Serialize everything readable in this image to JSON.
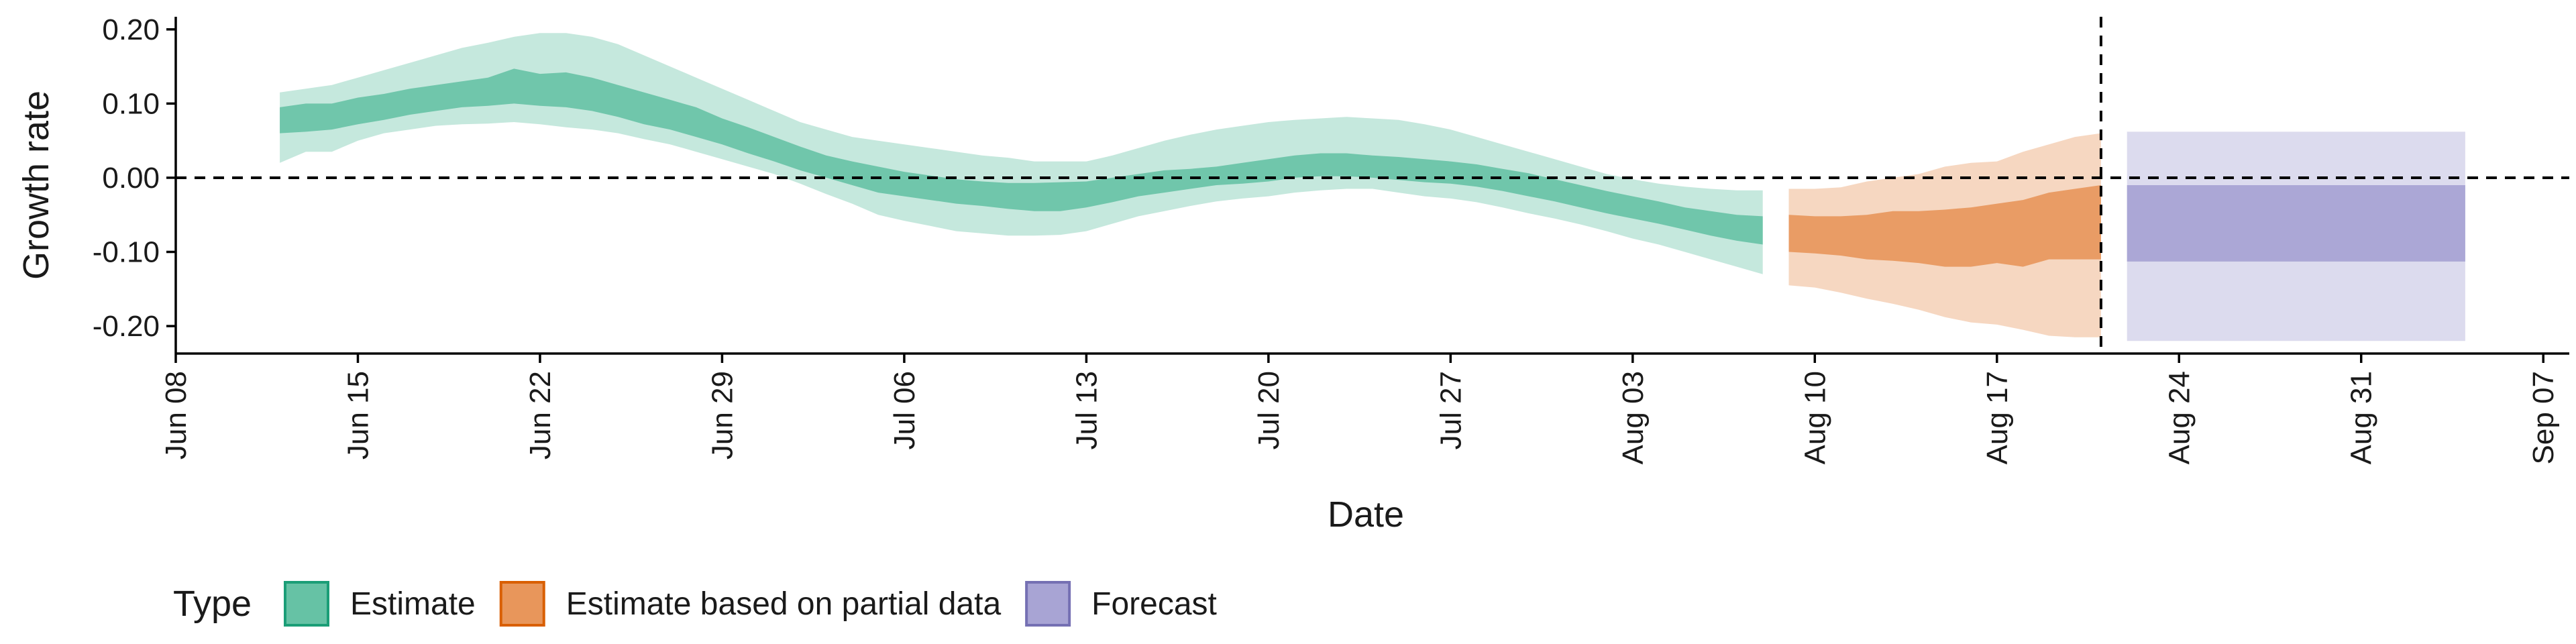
{
  "chart_data": {
    "type": "area",
    "xlabel": "Date",
    "ylabel": "Growth rate",
    "x_ticks": [
      {
        "date": "2020-06-08",
        "label": "Jun 08"
      },
      {
        "date": "2020-06-15",
        "label": "Jun 15"
      },
      {
        "date": "2020-06-22",
        "label": "Jun 22"
      },
      {
        "date": "2020-06-29",
        "label": "Jun 29"
      },
      {
        "date": "2020-07-06",
        "label": "Jul 06"
      },
      {
        "date": "2020-07-13",
        "label": "Jul 13"
      },
      {
        "date": "2020-07-20",
        "label": "Jul 20"
      },
      {
        "date": "2020-07-27",
        "label": "Jul 27"
      },
      {
        "date": "2020-08-03",
        "label": "Aug 03"
      },
      {
        "date": "2020-08-10",
        "label": "Aug 10"
      },
      {
        "date": "2020-08-17",
        "label": "Aug 17"
      },
      {
        "date": "2020-08-24",
        "label": "Aug 24"
      },
      {
        "date": "2020-08-31",
        "label": "Aug 31"
      },
      {
        "date": "2020-09-07",
        "label": "Sep 07"
      }
    ],
    "y_ticks": [
      {
        "value": 0.2,
        "label": "0.20"
      },
      {
        "value": 0.1,
        "label": "0.10"
      },
      {
        "value": 0.0,
        "label": "0.00"
      },
      {
        "value": -0.1,
        "label": "-0.10"
      },
      {
        "value": -0.2,
        "label": "-0.20"
      }
    ],
    "xlim": [
      "2020-06-08",
      "2020-09-08"
    ],
    "ylim": [
      -0.237,
      0.217
    ],
    "reference_lines": {
      "horizontal_y": 0.0,
      "vertical_date": "2020-08-21",
      "style": "dashed"
    },
    "grid": false,
    "legend": {
      "title": "Type",
      "position": "bottom-left",
      "items": [
        {
          "label": "Estimate",
          "fill": "#66c2a5",
          "border": "#1b9e77"
        },
        {
          "label": "Estimate based on partial data",
          "fill": "#e8965b",
          "border": "#d95f02"
        },
        {
          "label": "Forecast",
          "fill": "#a8a4d4",
          "border": "#7570b3"
        }
      ]
    },
    "series": [
      {
        "name": "Estimate",
        "color": "#66c2a5",
        "light_opacity": 0.38,
        "dark_opacity": 0.9,
        "points": [
          {
            "date": "2020-06-12",
            "lo90": 0.02,
            "lo50": 0.06,
            "hi50": 0.095,
            "hi90": 0.115
          },
          {
            "date": "2020-06-13",
            "lo90": 0.035,
            "lo50": 0.062,
            "hi50": 0.1,
            "hi90": 0.12
          },
          {
            "date": "2020-06-14",
            "lo90": 0.035,
            "lo50": 0.065,
            "hi50": 0.1,
            "hi90": 0.125
          },
          {
            "date": "2020-06-15",
            "lo90": 0.05,
            "lo50": 0.072,
            "hi50": 0.108,
            "hi90": 0.135
          },
          {
            "date": "2020-06-16",
            "lo90": 0.06,
            "lo50": 0.078,
            "hi50": 0.113,
            "hi90": 0.145
          },
          {
            "date": "2020-06-17",
            "lo90": 0.065,
            "lo50": 0.085,
            "hi50": 0.12,
            "hi90": 0.155
          },
          {
            "date": "2020-06-18",
            "lo90": 0.07,
            "lo50": 0.09,
            "hi50": 0.125,
            "hi90": 0.165
          },
          {
            "date": "2020-06-19",
            "lo90": 0.072,
            "lo50": 0.095,
            "hi50": 0.13,
            "hi90": 0.175
          },
          {
            "date": "2020-06-20",
            "lo90": 0.073,
            "lo50": 0.097,
            "hi50": 0.135,
            "hi90": 0.182
          },
          {
            "date": "2020-06-21",
            "lo90": 0.075,
            "lo50": 0.1,
            "hi50": 0.147,
            "hi90": 0.19
          },
          {
            "date": "2020-06-22",
            "lo90": 0.072,
            "lo50": 0.097,
            "hi50": 0.14,
            "hi90": 0.195
          },
          {
            "date": "2020-06-23",
            "lo90": 0.068,
            "lo50": 0.095,
            "hi50": 0.142,
            "hi90": 0.195
          },
          {
            "date": "2020-06-24",
            "lo90": 0.065,
            "lo50": 0.09,
            "hi50": 0.135,
            "hi90": 0.19
          },
          {
            "date": "2020-06-25",
            "lo90": 0.06,
            "lo50": 0.082,
            "hi50": 0.125,
            "hi90": 0.18
          },
          {
            "date": "2020-06-26",
            "lo90": 0.052,
            "lo50": 0.072,
            "hi50": 0.115,
            "hi90": 0.165
          },
          {
            "date": "2020-06-27",
            "lo90": 0.045,
            "lo50": 0.065,
            "hi50": 0.105,
            "hi90": 0.15
          },
          {
            "date": "2020-06-28",
            "lo90": 0.035,
            "lo50": 0.055,
            "hi50": 0.095,
            "hi90": 0.135
          },
          {
            "date": "2020-06-29",
            "lo90": 0.025,
            "lo50": 0.045,
            "hi50": 0.08,
            "hi90": 0.12
          },
          {
            "date": "2020-06-30",
            "lo90": 0.015,
            "lo50": 0.033,
            "hi50": 0.068,
            "hi90": 0.105
          },
          {
            "date": "2020-07-01",
            "lo90": 0.005,
            "lo50": 0.022,
            "hi50": 0.055,
            "hi90": 0.09
          },
          {
            "date": "2020-07-02",
            "lo90": -0.008,
            "lo50": 0.01,
            "hi50": 0.042,
            "hi90": 0.075
          },
          {
            "date": "2020-07-03",
            "lo90": -0.022,
            "lo50": 0.0,
            "hi50": 0.03,
            "hi90": 0.065
          },
          {
            "date": "2020-07-04",
            "lo90": -0.035,
            "lo50": -0.01,
            "hi50": 0.022,
            "hi90": 0.055
          },
          {
            "date": "2020-07-05",
            "lo90": -0.05,
            "lo50": -0.02,
            "hi50": 0.015,
            "hi90": 0.05
          },
          {
            "date": "2020-07-06",
            "lo90": -0.058,
            "lo50": -0.025,
            "hi50": 0.008,
            "hi90": 0.045
          },
          {
            "date": "2020-07-07",
            "lo90": -0.065,
            "lo50": -0.03,
            "hi50": 0.003,
            "hi90": 0.04
          },
          {
            "date": "2020-07-08",
            "lo90": -0.072,
            "lo50": -0.035,
            "hi50": -0.002,
            "hi90": 0.035
          },
          {
            "date": "2020-07-09",
            "lo90": -0.075,
            "lo50": -0.038,
            "hi50": -0.005,
            "hi90": 0.03
          },
          {
            "date": "2020-07-10",
            "lo90": -0.078,
            "lo50": -0.042,
            "hi50": -0.007,
            "hi90": 0.027
          },
          {
            "date": "2020-07-11",
            "lo90": -0.078,
            "lo50": -0.045,
            "hi50": -0.007,
            "hi90": 0.022
          },
          {
            "date": "2020-07-12",
            "lo90": -0.077,
            "lo50": -0.045,
            "hi50": -0.006,
            "hi90": 0.022
          },
          {
            "date": "2020-07-13",
            "lo90": -0.072,
            "lo50": -0.04,
            "hi50": -0.005,
            "hi90": 0.022
          },
          {
            "date": "2020-07-14",
            "lo90": -0.062,
            "lo50": -0.033,
            "hi50": 0.0,
            "hi90": 0.03
          },
          {
            "date": "2020-07-15",
            "lo90": -0.052,
            "lo50": -0.025,
            "hi50": 0.005,
            "hi90": 0.04
          },
          {
            "date": "2020-07-16",
            "lo90": -0.045,
            "lo50": -0.02,
            "hi50": 0.01,
            "hi90": 0.05
          },
          {
            "date": "2020-07-17",
            "lo90": -0.038,
            "lo50": -0.015,
            "hi50": 0.012,
            "hi90": 0.058
          },
          {
            "date": "2020-07-18",
            "lo90": -0.032,
            "lo50": -0.01,
            "hi50": 0.015,
            "hi90": 0.065
          },
          {
            "date": "2020-07-19",
            "lo90": -0.028,
            "lo50": -0.008,
            "hi50": 0.02,
            "hi90": 0.07
          },
          {
            "date": "2020-07-20",
            "lo90": -0.025,
            "lo50": -0.005,
            "hi50": 0.025,
            "hi90": 0.075
          },
          {
            "date": "2020-07-21",
            "lo90": -0.02,
            "lo50": 0.0,
            "hi50": 0.03,
            "hi90": 0.078
          },
          {
            "date": "2020-07-22",
            "lo90": -0.017,
            "lo50": 0.002,
            "hi50": 0.033,
            "hi90": 0.08
          },
          {
            "date": "2020-07-23",
            "lo90": -0.015,
            "lo50": 0.002,
            "hi50": 0.033,
            "hi90": 0.082
          },
          {
            "date": "2020-07-24",
            "lo90": -0.015,
            "lo50": 0.0,
            "hi50": 0.03,
            "hi90": 0.08
          },
          {
            "date": "2020-07-25",
            "lo90": -0.02,
            "lo50": -0.003,
            "hi50": 0.028,
            "hi90": 0.078
          },
          {
            "date": "2020-07-26",
            "lo90": -0.025,
            "lo50": -0.006,
            "hi50": 0.025,
            "hi90": 0.072
          },
          {
            "date": "2020-07-27",
            "lo90": -0.028,
            "lo50": -0.008,
            "hi50": 0.022,
            "hi90": 0.065
          },
          {
            "date": "2020-07-28",
            "lo90": -0.033,
            "lo50": -0.012,
            "hi50": 0.018,
            "hi90": 0.055
          },
          {
            "date": "2020-07-29",
            "lo90": -0.04,
            "lo50": -0.018,
            "hi50": 0.012,
            "hi90": 0.045
          },
          {
            "date": "2020-07-30",
            "lo90": -0.048,
            "lo50": -0.025,
            "hi50": 0.006,
            "hi90": 0.035
          },
          {
            "date": "2020-07-31",
            "lo90": -0.055,
            "lo50": -0.032,
            "hi50": -0.002,
            "hi90": 0.025
          },
          {
            "date": "2020-08-01",
            "lo90": -0.063,
            "lo50": -0.04,
            "hi50": -0.01,
            "hi90": 0.015
          },
          {
            "date": "2020-08-02",
            "lo90": -0.072,
            "lo50": -0.048,
            "hi50": -0.018,
            "hi90": 0.005
          },
          {
            "date": "2020-08-03",
            "lo90": -0.082,
            "lo50": -0.055,
            "hi50": -0.025,
            "hi90": -0.002
          },
          {
            "date": "2020-08-04",
            "lo90": -0.09,
            "lo50": -0.062,
            "hi50": -0.032,
            "hi90": -0.008
          },
          {
            "date": "2020-08-05",
            "lo90": -0.1,
            "lo50": -0.07,
            "hi50": -0.04,
            "hi90": -0.012
          },
          {
            "date": "2020-08-06",
            "lo90": -0.11,
            "lo50": -0.078,
            "hi50": -0.045,
            "hi90": -0.015
          },
          {
            "date": "2020-08-07",
            "lo90": -0.12,
            "lo50": -0.085,
            "hi50": -0.05,
            "hi90": -0.017
          },
          {
            "date": "2020-08-08",
            "lo90": -0.13,
            "lo50": -0.09,
            "hi50": -0.052,
            "hi90": -0.017
          }
        ]
      },
      {
        "name": "Estimate based on partial data",
        "color": "#e8965b",
        "light_opacity": 0.38,
        "dark_opacity": 0.9,
        "points": [
          {
            "date": "2020-08-09",
            "lo90": -0.145,
            "lo50": -0.1,
            "hi50": -0.05,
            "hi90": -0.015
          },
          {
            "date": "2020-08-10",
            "lo90": -0.148,
            "lo50": -0.102,
            "hi50": -0.052,
            "hi90": -0.015
          },
          {
            "date": "2020-08-11",
            "lo90": -0.155,
            "lo50": -0.105,
            "hi50": -0.052,
            "hi90": -0.013
          },
          {
            "date": "2020-08-12",
            "lo90": -0.163,
            "lo50": -0.11,
            "hi50": -0.05,
            "hi90": -0.005
          },
          {
            "date": "2020-08-13",
            "lo90": -0.17,
            "lo50": -0.112,
            "hi50": -0.045,
            "hi90": 0.0
          },
          {
            "date": "2020-08-14",
            "lo90": -0.178,
            "lo50": -0.115,
            "hi50": -0.045,
            "hi90": 0.005
          },
          {
            "date": "2020-08-15",
            "lo90": -0.188,
            "lo50": -0.12,
            "hi50": -0.043,
            "hi90": 0.015
          },
          {
            "date": "2020-08-16",
            "lo90": -0.195,
            "lo50": -0.12,
            "hi50": -0.04,
            "hi90": 0.02
          },
          {
            "date": "2020-08-17",
            "lo90": -0.198,
            "lo50": -0.115,
            "hi50": -0.035,
            "hi90": 0.022
          },
          {
            "date": "2020-08-18",
            "lo90": -0.205,
            "lo50": -0.12,
            "hi50": -0.03,
            "hi90": 0.035
          },
          {
            "date": "2020-08-19",
            "lo90": -0.213,
            "lo50": -0.11,
            "hi50": -0.02,
            "hi90": 0.045
          },
          {
            "date": "2020-08-20",
            "lo90": -0.215,
            "lo50": -0.11,
            "hi50": -0.015,
            "hi90": 0.055
          },
          {
            "date": "2020-08-21",
            "lo90": -0.215,
            "lo50": -0.11,
            "hi50": -0.01,
            "hi90": 0.06
          }
        ]
      },
      {
        "name": "Forecast",
        "color": "#a8a4d4",
        "light_opacity": 0.4,
        "dark_opacity": 0.95,
        "points": [
          {
            "date": "2020-08-22",
            "lo90": -0.22,
            "lo50": -0.113,
            "hi50": -0.01,
            "hi90": 0.062
          },
          {
            "date": "2020-09-04",
            "lo90": -0.22,
            "lo50": -0.113,
            "hi50": -0.01,
            "hi90": 0.062
          }
        ]
      }
    ]
  }
}
